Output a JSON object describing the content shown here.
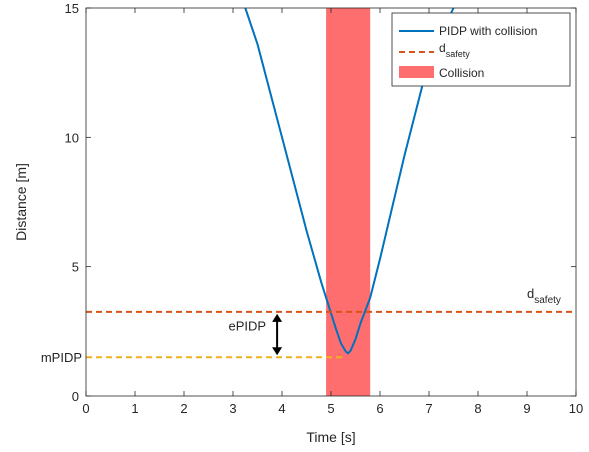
{
  "chart_data": {
    "type": "line",
    "xlabel": "Time [s]",
    "ylabel": "Distance [m]",
    "xlim": [
      0,
      10
    ],
    "ylim": [
      0,
      15
    ],
    "xticks": [
      0,
      1,
      2,
      3,
      4,
      5,
      6,
      7,
      8,
      9,
      10
    ],
    "yticks": [
      0,
      5,
      10,
      15
    ],
    "grid": false,
    "legend_placement": "top-right",
    "series": [
      {
        "name": "PIDP with collision",
        "style": "solid",
        "color": "#0072BD",
        "x": [
          3.25,
          3.5,
          4.0,
          4.5,
          4.8,
          5.0,
          5.1,
          5.2,
          5.3,
          5.35,
          5.4,
          5.5,
          5.6,
          5.8,
          6.0,
          6.5,
          7.0,
          7.5
        ],
        "y": [
          15.0,
          13.6,
          10.0,
          6.4,
          4.4,
          3.2,
          2.6,
          2.05,
          1.72,
          1.65,
          1.75,
          2.2,
          2.8,
          3.8,
          5.3,
          9.3,
          13.0,
          15.0
        ]
      },
      {
        "name": "d_safety",
        "style": "dashed",
        "color": "#D95319",
        "x": [
          0,
          10
        ],
        "y": [
          3.25,
          3.25
        ]
      }
    ],
    "mpidp_line": {
      "color": "#EDB120",
      "style": "dashed",
      "x": [
        0,
        5.3
      ],
      "y": [
        1.5,
        1.5
      ]
    },
    "collision_band": {
      "name": "Collision",
      "color": "#FF6E6E",
      "x_start": 4.9,
      "x_end": 5.8
    },
    "annotations": {
      "d_safety": {
        "main": "d",
        "sub": "safety",
        "x": 9.0,
        "y": 3.25
      },
      "mpidp": {
        "text": "mPIDP",
        "y": 1.5
      },
      "epidp": {
        "text": "ePIDP",
        "x": 3.9,
        "y_top": 3.25,
        "y_bottom": 1.5
      }
    },
    "legend": [
      {
        "label": "PIDP with collision",
        "kind": "line"
      },
      {
        "label_main": "d",
        "label_sub": "safety",
        "kind": "dashed"
      },
      {
        "label": "Collision",
        "kind": "patch"
      }
    ],
    "axis_color": "#262626"
  }
}
